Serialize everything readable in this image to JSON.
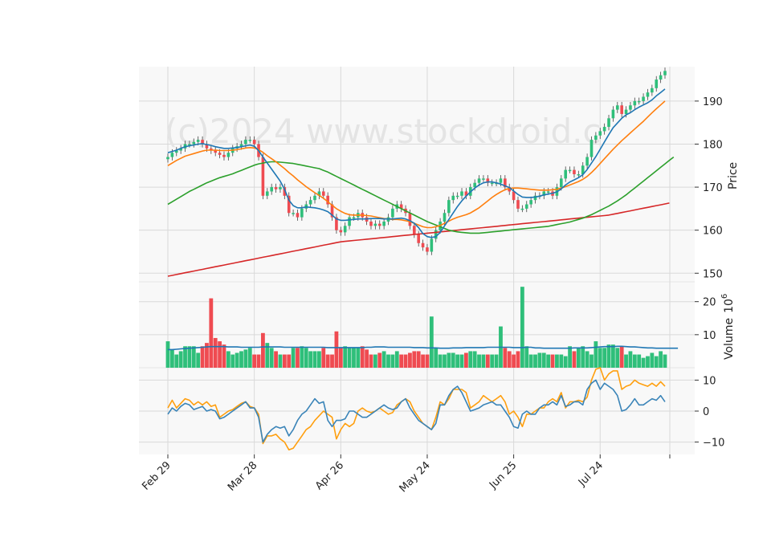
{
  "watermark": "(c)2024 www.stockdroid.c",
  "colors": {
    "up": "#2fbf7a",
    "down": "#ef4b51",
    "ma_short": "#1f77b4",
    "ma_mid": "#ff7f0e",
    "ma_long": "#2ca02c",
    "ma_longest": "#d62728",
    "vol_avg": "#1f77b4",
    "osc_a": "#ff9f0e",
    "osc_b": "#3a84b8",
    "grid": "#d9d9d9",
    "panel_bg": "#f8f8f8"
  },
  "chart_data": {
    "type": "candlestick",
    "x_ticks": [
      "Feb 29",
      "Mar 28",
      "Apr 26",
      "May 24",
      "Jun 25",
      "Jul 24"
    ],
    "x_tick_index": [
      0,
      20,
      40,
      60,
      80,
      100
    ],
    "price_panel": {
      "ylabel": "Price",
      "ylim": [
        148,
        198
      ],
      "yticks": [
        150,
        160,
        170,
        180,
        190
      ],
      "close": [
        177,
        178,
        178.5,
        179,
        180,
        180,
        180.5,
        181,
        180,
        179,
        178.5,
        178,
        177.5,
        177,
        178,
        179,
        179.5,
        180,
        181,
        181,
        180,
        177,
        168,
        169,
        170,
        169.5,
        170,
        168,
        164,
        164,
        163,
        165,
        166,
        167,
        168,
        169,
        168,
        166,
        163,
        160,
        159.5,
        161,
        163,
        163,
        164,
        163,
        162,
        161,
        161.5,
        161,
        162,
        163,
        165,
        166,
        165,
        164,
        161,
        159,
        157,
        156,
        155,
        158,
        160,
        162,
        164,
        167,
        168,
        168,
        169,
        168,
        170,
        171,
        172,
        172,
        171,
        171,
        171,
        172,
        170,
        169,
        167,
        165,
        165,
        166,
        167,
        168,
        168,
        169,
        169,
        168,
        170,
        172,
        174,
        174,
        173,
        173,
        175,
        177,
        181,
        182,
        183,
        184,
        186,
        188,
        189,
        187,
        188,
        189,
        190,
        190,
        191,
        192,
        193,
        195,
        196,
        197
      ],
      "ma_short": [
        178,
        178.3,
        178.6,
        179,
        179.4,
        179.6,
        179.8,
        180,
        180.1,
        179.9,
        179.7,
        179.4,
        179.2,
        179,
        179,
        179.1,
        179.2,
        179.4,
        179.6,
        179.8,
        179.5,
        178.5,
        177,
        175.6,
        174.2,
        172.8,
        171.4,
        169.5,
        167,
        165.7,
        165.2,
        165.2,
        165.4,
        165.3,
        165.2,
        165,
        164.7,
        164.3,
        163.5,
        162.6,
        162.3,
        162.3,
        162.4,
        162.5,
        162.6,
        162.6,
        162.6,
        162.7,
        162.7,
        162.7,
        162.6,
        162.6,
        162.6,
        162.7,
        162.8,
        162.6,
        162.2,
        161.6,
        160.6,
        159.2,
        158.5,
        158.3,
        158.5,
        159.5,
        161,
        162.5,
        164,
        165.5,
        166.8,
        167.9,
        168.9,
        169.8,
        170.5,
        171,
        171.2,
        171.2,
        171,
        170.7,
        170.3,
        169.9,
        169.1,
        168.3,
        167.7,
        167.6,
        167.6,
        167.7,
        167.9,
        168.2,
        168.4,
        168.6,
        168.9,
        169.6,
        170.5,
        171.2,
        171.7,
        172.2,
        172.9,
        174.1,
        175.6,
        177.1,
        178.8,
        180.5,
        182.2,
        183.8,
        184.9,
        186,
        186.8,
        187.3,
        188,
        188.6,
        189.1,
        189.6,
        190.3,
        191.2,
        192,
        192.8
      ],
      "ma_mid": [
        175,
        175.6,
        176.2,
        176.7,
        177.2,
        177.5,
        177.8,
        178.1,
        178.4,
        178.6,
        178.6,
        178.6,
        178.5,
        178.5,
        178.5,
        178.6,
        178.7,
        178.9,
        179.1,
        179.2,
        179.1,
        178.7,
        178.1,
        177.3,
        176.6,
        175.9,
        175.1,
        174.3,
        173.4,
        172.6,
        171.7,
        170.9,
        170.1,
        169.4,
        168.7,
        168.1,
        167.4,
        166.6,
        165.8,
        165,
        164.4,
        163.9,
        163.6,
        163.5,
        163.5,
        163.5,
        163.4,
        163.3,
        163.1,
        162.9,
        162.7,
        162.6,
        162.5,
        162.5,
        162.4,
        162.2,
        162,
        161.6,
        161.2,
        160.8,
        160.6,
        160.6,
        160.8,
        161.1,
        161.6,
        162.1,
        162.6,
        163,
        163.3,
        163.6,
        164,
        164.6,
        165.2,
        166,
        166.8,
        167.6,
        168.3,
        168.9,
        169.4,
        169.7,
        169.8,
        169.8,
        169.7,
        169.6,
        169.5,
        169.4,
        169.3,
        169.3,
        169.3,
        169.4,
        169.5,
        169.8,
        170.1,
        170.5,
        170.9,
        171.3,
        171.8,
        172.5,
        173.4,
        174.4,
        175.5,
        176.6,
        177.7,
        178.8,
        179.8,
        180.8,
        181.7,
        182.6,
        183.5,
        184.4,
        185.3,
        186.3,
        187.3,
        188.2,
        189.1,
        190
      ],
      "ma_long": [
        166,
        166.6,
        167.2,
        167.8,
        168.4,
        169,
        169.5,
        170,
        170.5,
        171,
        171.4,
        171.8,
        172.2,
        172.5,
        172.8,
        173.1,
        173.5,
        173.9,
        174.3,
        174.7,
        175.1,
        175.4,
        175.6,
        175.8,
        175.9,
        175.9,
        175.8,
        175.7,
        175.6,
        175.5,
        175.3,
        175.1,
        174.9,
        174.7,
        174.5,
        174.3,
        173.9,
        173.5,
        173,
        172.5,
        172,
        171.5,
        171,
        170.5,
        170,
        169.5,
        169,
        168.5,
        168,
        167.5,
        167,
        166.5,
        166,
        165.5,
        165,
        164.5,
        164,
        163.5,
        163,
        162.5,
        162,
        161.6,
        161.2,
        160.8,
        160.4,
        160,
        159.8,
        159.6,
        159.5,
        159.4,
        159.3,
        159.3,
        159.3,
        159.4,
        159.5,
        159.6,
        159.7,
        159.8,
        159.9,
        160,
        160.1,
        160.2,
        160.3,
        160.4,
        160.5,
        160.6,
        160.7,
        160.8,
        160.9,
        161.1,
        161.3,
        161.5,
        161.7,
        161.9,
        162.2,
        162.5,
        162.8,
        163.2,
        163.6,
        164.1,
        164.6,
        165.1,
        165.6,
        166.2,
        166.8,
        167.5,
        168.2,
        169,
        169.8,
        170.6,
        171.4,
        172.2,
        173,
        173.8,
        174.6,
        175.4,
        176.2,
        177
      ],
      "ma_longest": [
        149.3,
        149.5,
        149.7,
        149.9,
        150.1,
        150.3,
        150.5,
        150.7,
        150.9,
        151.1,
        151.3,
        151.5,
        151.7,
        151.9,
        152.1,
        152.3,
        152.5,
        152.7,
        152.9,
        153.1,
        153.3,
        153.5,
        153.7,
        153.9,
        154.1,
        154.3,
        154.5,
        154.7,
        154.9,
        155.1,
        155.3,
        155.5,
        155.7,
        155.9,
        156.1,
        156.3,
        156.5,
        156.7,
        156.9,
        157.1,
        157.3,
        157.4,
        157.5,
        157.6,
        157.7,
        157.8,
        157.9,
        158,
        158.1,
        158.2,
        158.3,
        158.4,
        158.5,
        158.6,
        158.7,
        158.8,
        158.9,
        159,
        159.1,
        159.2,
        159.3,
        159.4,
        159.5,
        159.6,
        159.7,
        159.8,
        159.9,
        160,
        160.1,
        160.2,
        160.3,
        160.4,
        160.5,
        160.6,
        160.7,
        160.8,
        160.9,
        161,
        161.1,
        161.2,
        161.3,
        161.4,
        161.5,
        161.6,
        161.7,
        161.8,
        161.9,
        162,
        162.1,
        162.2,
        162.3,
        162.4,
        162.5,
        162.6,
        162.7,
        162.8,
        162.9,
        163,
        163.1,
        163.2,
        163.3,
        163.4,
        163.5,
        163.7,
        163.9,
        164.1,
        164.3,
        164.5,
        164.7,
        164.9,
        165.1,
        165.3,
        165.5,
        165.7,
        165.9,
        166.1,
        166.3
      ]
    },
    "volume_panel": {
      "ylabel": "Volume",
      "exponent_label": "10",
      "exponent_power": "6",
      "ylim": [
        0,
        26
      ],
      "yticks": [
        10,
        20
      ],
      "volume": [
        8,
        5.5,
        4,
        5,
        6.5,
        6.5,
        6.5,
        4.5,
        6.5,
        7.5,
        21,
        9,
        8,
        7,
        5,
        4,
        4.5,
        5,
        5.5,
        6,
        4,
        4,
        10.5,
        7.5,
        6,
        5,
        4,
        4,
        4,
        6,
        6,
        6.5,
        6,
        5,
        5,
        5,
        6,
        4,
        4,
        11,
        6,
        6.5,
        6,
        6,
        6,
        6.5,
        5.5,
        4,
        4,
        4.5,
        5,
        4,
        4,
        5,
        4,
        4,
        4.5,
        5,
        5,
        4,
        4,
        15.5,
        6,
        4,
        4,
        4.5,
        4.5,
        4,
        4,
        4.5,
        5,
        5,
        4,
        4,
        4,
        4,
        4,
        12.5,
        6,
        5,
        4,
        5,
        24.5,
        6.5,
        4,
        4,
        4.5,
        4.5,
        4,
        4,
        4,
        4,
        3.5,
        6.5,
        5,
        6,
        6.5,
        5,
        4,
        8,
        6,
        6,
        7,
        7,
        6,
        6.5,
        4,
        5,
        4,
        4,
        3,
        3.5,
        4.5,
        3.5,
        5,
        4,
        3.5,
        4
      ],
      "volume_avg": [
        5.5,
        5.5,
        5.6,
        5.7,
        5.8,
        5.9,
        6,
        6.1,
        6.2,
        6.3,
        6.4,
        6.4,
        6.4,
        6.4,
        6.3,
        6.3,
        6.3,
        6.2,
        6.2,
        6.2,
        6.2,
        6.2,
        6.3,
        6.3,
        6.3,
        6.3,
        6.3,
        6.2,
        6.2,
        6.2,
        6.2,
        6.2,
        6.2,
        6.2,
        6.2,
        6.2,
        6.2,
        6.1,
        6.1,
        6.1,
        6.1,
        6.1,
        6.1,
        6.1,
        6.1,
        6.1,
        6.2,
        6.2,
        6.3,
        6.3,
        6.3,
        6.2,
        6.2,
        6.2,
        6.2,
        6.2,
        6.2,
        6.1,
        6.1,
        6.1,
        6,
        6,
        6,
        5.9,
        5.9,
        5.9,
        6,
        6,
        6,
        6.1,
        6.1,
        6.1,
        6.1,
        6.1,
        6.2,
        6.2,
        6.2,
        6.2,
        6.2,
        6.2,
        6.1,
        6.1,
        6.1,
        6.2,
        6.2,
        6,
        6,
        5.9,
        5.9,
        5.9,
        5.9,
        5.9,
        5.9,
        5.9,
        6,
        6,
        6,
        6,
        6.1,
        6.2,
        6.3,
        6.4,
        6.4,
        6.4,
        6.5,
        6.5,
        6.4,
        6.3,
        6.3,
        6.2,
        6.1,
        6,
        6,
        5.9,
        5.9,
        5.9,
        5.9,
        5.9,
        5.9
      ]
    },
    "oscillator_panel": {
      "ylim": [
        -14,
        14
      ],
      "yticks": [
        -10,
        0,
        10
      ],
      "line_a": [
        1,
        3.5,
        1,
        2.5,
        4,
        3.5,
        2,
        3,
        2,
        3,
        1.5,
        2,
        -2,
        -1,
        0,
        0.5,
        1.5,
        2.5,
        3,
        1.5,
        1,
        -1,
        -10.5,
        -8,
        -8,
        -7.5,
        -9,
        -10,
        -12.5,
        -12,
        -10,
        -8,
        -6,
        -5,
        -3,
        -1.5,
        0,
        -1,
        -2,
        -9,
        -6,
        -4,
        -5,
        -4,
        0,
        1,
        0,
        -0.5,
        0,
        1,
        0,
        -1,
        -0.5,
        2,
        3,
        4,
        3,
        0,
        -2,
        -4,
        -5,
        -6,
        -2,
        3,
        2,
        4,
        7,
        7,
        7,
        6,
        1,
        2,
        3,
        5,
        4,
        3,
        4,
        5,
        3,
        -1,
        0,
        -2,
        -5,
        -1,
        -1,
        0,
        1,
        1,
        3,
        4,
        3,
        6,
        1,
        3,
        3,
        3.5,
        3,
        4.5,
        10,
        13.5,
        14,
        10,
        12,
        13,
        13,
        7,
        8,
        8.5,
        10,
        9,
        8.5,
        8,
        9,
        8,
        9.5,
        8
      ],
      "line_b": [
        -1,
        1,
        0,
        1.5,
        2.5,
        2,
        0.5,
        1,
        1.5,
        0,
        0.5,
        0,
        -2.5,
        -2,
        -1,
        0,
        1,
        2,
        3,
        1,
        1,
        -2,
        -10,
        -7.5,
        -6,
        -5,
        -5.5,
        -5,
        -8,
        -6,
        -3,
        -1,
        0,
        2,
        4,
        2.5,
        3,
        -3,
        -5,
        -3,
        -3,
        -2.5,
        0,
        0,
        -1,
        -2,
        -2,
        -1,
        0,
        1,
        2,
        1,
        0.5,
        1,
        3,
        4,
        1,
        -1,
        -3,
        -4,
        -5,
        -6,
        -4,
        2,
        2,
        5,
        7,
        8,
        6,
        3,
        0,
        0.5,
        1,
        2,
        2.5,
        3,
        2,
        2,
        0,
        -2,
        -5,
        -5.5,
        -1,
        0,
        -1,
        -1,
        1,
        2,
        2,
        3,
        2,
        5,
        1.5,
        2,
        3,
        3,
        2,
        7,
        9,
        10,
        7,
        9,
        8,
        7,
        5,
        0,
        0.5,
        2,
        4,
        2,
        2,
        3,
        4,
        3.5,
        5,
        3
      ]
    }
  }
}
